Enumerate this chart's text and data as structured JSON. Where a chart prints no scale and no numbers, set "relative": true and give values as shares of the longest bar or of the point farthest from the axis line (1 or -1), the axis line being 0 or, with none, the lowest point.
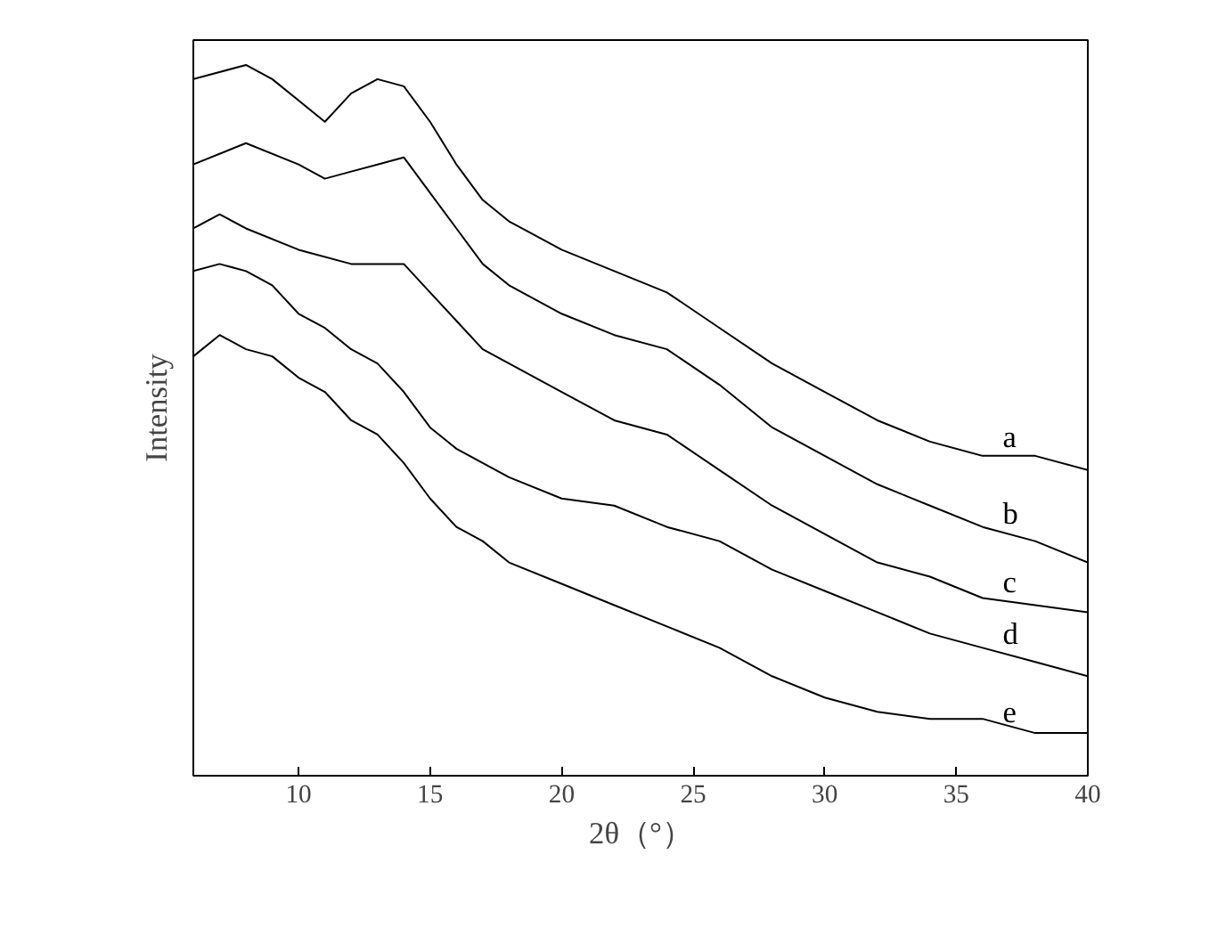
{
  "chart_data": {
    "type": "line",
    "relative": true,
    "xlabel": "2θ（°）",
    "ylabel": "Intensity",
    "xlim": [
      6,
      40
    ],
    "xticks": [
      10,
      15,
      20,
      25,
      30,
      35,
      40
    ],
    "tick_labels": "x",
    "grid": false,
    "marker": "none",
    "line_style": "solid",
    "series": [
      {
        "name": "a",
        "color": "#000000",
        "x": [
          6,
          8,
          9,
          10,
          11,
          12,
          13,
          14,
          15,
          16,
          17,
          18,
          20,
          22,
          24,
          26,
          28,
          30,
          32,
          34,
          36,
          38,
          40
        ],
        "values": [
          0.98,
          1.0,
          0.98,
          0.95,
          0.92,
          0.96,
          0.98,
          0.97,
          0.92,
          0.86,
          0.81,
          0.78,
          0.74,
          0.71,
          0.68,
          0.63,
          0.58,
          0.54,
          0.5,
          0.47,
          0.45,
          0.45,
          0.43
        ]
      },
      {
        "name": "b",
        "color": "#000000",
        "x": [
          6,
          8,
          10,
          11,
          12,
          13,
          14,
          15,
          16,
          17,
          18,
          20,
          22,
          24,
          26,
          28,
          30,
          32,
          34,
          36,
          38,
          40
        ],
        "values": [
          0.86,
          0.89,
          0.86,
          0.84,
          0.85,
          0.86,
          0.87,
          0.82,
          0.77,
          0.72,
          0.69,
          0.65,
          0.62,
          0.6,
          0.55,
          0.49,
          0.45,
          0.41,
          0.38,
          0.35,
          0.33,
          0.3
        ]
      },
      {
        "name": "c",
        "color": "#000000",
        "x": [
          6,
          7,
          8,
          10,
          12,
          14,
          15,
          16,
          17,
          18,
          20,
          22,
          24,
          26,
          28,
          30,
          32,
          34,
          36,
          38,
          40
        ],
        "values": [
          0.77,
          0.79,
          0.77,
          0.74,
          0.72,
          0.72,
          0.68,
          0.64,
          0.6,
          0.58,
          0.54,
          0.5,
          0.48,
          0.43,
          0.38,
          0.34,
          0.3,
          0.28,
          0.25,
          0.24,
          0.23
        ]
      },
      {
        "name": "d",
        "color": "#000000",
        "x": [
          6,
          7,
          8,
          9,
          10,
          11,
          12,
          13,
          14,
          15,
          16,
          17,
          18,
          20,
          22,
          24,
          26,
          28,
          30,
          32,
          34,
          36,
          38,
          40
        ],
        "values": [
          0.71,
          0.72,
          0.71,
          0.69,
          0.65,
          0.63,
          0.6,
          0.58,
          0.54,
          0.49,
          0.46,
          0.44,
          0.42,
          0.39,
          0.38,
          0.35,
          0.33,
          0.29,
          0.26,
          0.23,
          0.2,
          0.18,
          0.16,
          0.14
        ]
      },
      {
        "name": "e",
        "color": "#000000",
        "x": [
          6,
          7,
          8,
          9,
          10,
          11,
          12,
          13,
          14,
          15,
          16,
          17,
          18,
          20,
          22,
          24,
          26,
          28,
          30,
          32,
          34,
          36,
          38,
          40
        ],
        "values": [
          0.59,
          0.62,
          0.6,
          0.59,
          0.56,
          0.54,
          0.5,
          0.48,
          0.44,
          0.39,
          0.35,
          0.33,
          0.3,
          0.27,
          0.24,
          0.21,
          0.18,
          0.14,
          0.11,
          0.09,
          0.08,
          0.08,
          0.06,
          0.06
        ]
      }
    ]
  }
}
